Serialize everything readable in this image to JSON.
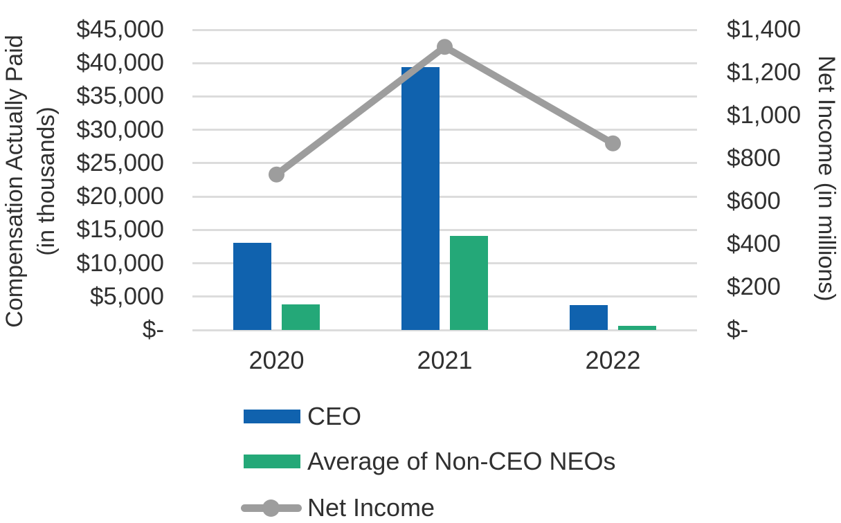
{
  "chart_data": {
    "type": "bar",
    "subtype": "combo-bar-line",
    "categories": [
      "2020",
      "2021",
      "2022"
    ],
    "series": [
      {
        "name": "CEO",
        "type": "bar",
        "axis": "left",
        "color": "#1062AE",
        "values": [
          13100,
          39400,
          3700
        ]
      },
      {
        "name": "Average of Non-CEO NEOs",
        "type": "bar",
        "axis": "left",
        "color": "#24A878",
        "values": [
          3800,
          14100,
          670
        ]
      },
      {
        "name": "Net Income",
        "type": "line",
        "axis": "right",
        "color": "#9D9D9D",
        "values": [
          725,
          1320,
          870
        ]
      }
    ],
    "left_axis": {
      "title": "Compensation Actually Paid (in thousands)",
      "title_line1": "Compensation Actually Paid",
      "title_line2": "(in thousands)",
      "tick_labels": [
        "$45,000",
        "$40,000",
        "$35,000",
        "$30,000",
        "$25,000",
        "$20,000",
        "$15,000",
        "$10,000",
        "$5,000",
        "$-"
      ],
      "min": 0,
      "max": 45000
    },
    "right_axis": {
      "title": "Net Income (in millions)",
      "tick_labels": [
        "$1,400",
        "$1,200",
        "$1,000",
        "$800",
        "$600",
        "$400",
        "$200",
        "$-"
      ],
      "min": 0,
      "max": 1400
    },
    "grid": true,
    "gridline_color": "#DCDCDC",
    "text_color": "#303030",
    "background_color": "#FFFFFF",
    "legend_position": "bottom-left"
  }
}
